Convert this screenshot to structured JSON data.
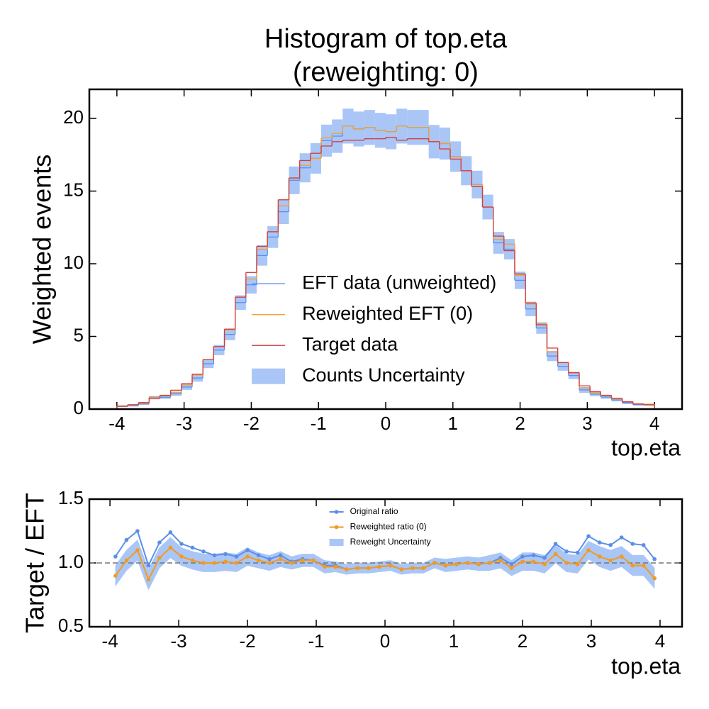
{
  "chart_data": [
    {
      "type": "histogram",
      "title": [
        "Histogram of top.eta",
        "(reweighting: 0)"
      ],
      "xlabel": "top.eta",
      "ylabel": "Weighted events",
      "bins": [
        -4,
        -3.84,
        -3.68,
        -3.52,
        -3.36,
        -3.2,
        -3.04,
        -2.88,
        -2.72,
        -2.56,
        -2.4,
        -2.24,
        -2.08,
        -1.92,
        -1.76,
        -1.6,
        -1.44,
        -1.28,
        -1.12,
        -0.96,
        -0.8,
        -0.64,
        -0.48,
        -0.32,
        -0.16,
        0,
        0.16,
        0.32,
        0.48,
        0.64,
        0.8,
        0.96,
        1.12,
        1.28,
        1.44,
        1.6,
        1.76,
        1.92,
        2.08,
        2.24,
        2.4,
        2.56,
        2.72,
        2.88,
        3.04,
        3.2,
        3.36,
        3.52,
        3.68,
        3.84,
        4
      ],
      "series": [
        {
          "name": "EFT data (unweighted)",
          "color": "#5b8ff0",
          "values": [
            0.19,
            0.25,
            0.36,
            0.77,
            0.82,
            1.05,
            1.52,
            2.14,
            3.12,
            4.06,
            5.14,
            7.33,
            8.55,
            10.57,
            11.84,
            13.58,
            15.74,
            16.6,
            17.25,
            18.47,
            18.78,
            19.47,
            19.27,
            19.38,
            19.18,
            19.08,
            19.47,
            19.38,
            19.38,
            18.4,
            18.27,
            17.37,
            16.4,
            15.45,
            13.9,
            11.44,
            11.0,
            8.86,
            6.89,
            5.58,
            3.65,
            2.94,
            2.31,
            1.32,
            1.03,
            0.83,
            0.63,
            0.43,
            0.31,
            0.29
          ]
        },
        {
          "name": "Reweighted EFT (0)",
          "color": "#f5a02a",
          "values": [
            0.22,
            0.29,
            0.41,
            0.86,
            0.91,
            1.16,
            1.67,
            2.35,
            3.4,
            4.3,
            5.45,
            7.7,
            8.95,
            10.98,
            12.2,
            13.98,
            15.9,
            16.76,
            17.25,
            18.66,
            18.97,
            19.47,
            19.27,
            19.38,
            19.18,
            19.08,
            19.47,
            19.38,
            19.38,
            18.4,
            18.27,
            17.37,
            16.4,
            15.45,
            13.9,
            11.67,
            11.35,
            9.21,
            7.23,
            5.86,
            3.93,
            3.2,
            2.53,
            1.45,
            1.14,
            0.93,
            0.71,
            0.51,
            0.36,
            0.34
          ]
        },
        {
          "name": "Target data",
          "color": "#d43a3a",
          "values": [
            0.2,
            0.3,
            0.45,
            0.75,
            0.95,
            1.3,
            1.75,
            2.4,
            3.4,
            4.3,
            5.5,
            7.7,
            9.4,
            11.2,
            12.2,
            14.4,
            15.9,
            17.1,
            17.6,
            18.1,
            18.4,
            18.5,
            18.5,
            18.6,
            18.6,
            18.7,
            18.5,
            18.6,
            18.6,
            18.4,
            17.9,
            17.2,
            16.4,
            15.3,
            13.9,
            11.9,
            10.9,
            9.3,
            7.3,
            5.8,
            4.2,
            3.2,
            2.5,
            1.6,
            1.2,
            0.95,
            0.75,
            0.5,
            0.35,
            0.3
          ]
        },
        {
          "name": "Counts Uncertainty",
          "color": "#a9c6f7",
          "errors": [
            0.05,
            0.07,
            0.08,
            0.1,
            0.12,
            0.14,
            0.2,
            0.25,
            0.3,
            0.35,
            0.4,
            0.5,
            0.6,
            0.7,
            0.75,
            0.85,
            0.95,
            1.0,
            1.05,
            1.1,
            1.15,
            1.2,
            1.2,
            1.2,
            1.2,
            1.2,
            1.2,
            1.2,
            1.2,
            1.15,
            1.1,
            1.05,
            1.0,
            0.95,
            0.85,
            0.75,
            0.7,
            0.6,
            0.5,
            0.4,
            0.35,
            0.3,
            0.25,
            0.2,
            0.14,
            0.12,
            0.1,
            0.08,
            0.07,
            0.05
          ]
        }
      ],
      "xlim": [
        -4.41,
        4.41
      ],
      "xticks": [
        -4,
        -3,
        -2,
        -1,
        0,
        1,
        2,
        3,
        4
      ],
      "ylim": [
        0,
        22
      ],
      "yticks": [
        0,
        5,
        10,
        15,
        20
      ],
      "legend": "center"
    },
    {
      "type": "line",
      "xlabel": "top.eta",
      "ylabel": "Target / EFT",
      "x": [
        -3.92,
        -3.76,
        -3.6,
        -3.44,
        -3.28,
        -3.12,
        -2.96,
        -2.8,
        -2.64,
        -2.48,
        -2.32,
        -2.16,
        -2,
        -1.84,
        -1.68,
        -1.52,
        -1.36,
        -1.2,
        -1.04,
        -0.88,
        -0.72,
        -0.56,
        -0.4,
        -0.24,
        -0.08,
        0.08,
        0.24,
        0.4,
        0.56,
        0.72,
        0.88,
        1.04,
        1.2,
        1.36,
        1.52,
        1.68,
        1.84,
        2,
        2.16,
        2.32,
        2.48,
        2.64,
        2.8,
        2.96,
        3.12,
        3.28,
        3.44,
        3.6,
        3.76,
        3.92
      ],
      "series": [
        {
          "name": "Original ratio",
          "color": "#5b8fe6",
          "values": [
            1.05,
            1.18,
            1.25,
            0.98,
            1.16,
            1.24,
            1.15,
            1.12,
            1.09,
            1.06,
            1.07,
            1.05,
            1.1,
            1.06,
            1.03,
            1.06,
            1.01,
            1.03,
            1.02,
            0.98,
            0.98,
            0.95,
            0.96,
            0.96,
            0.97,
            0.98,
            0.95,
            0.96,
            0.96,
            1.0,
            0.98,
            0.99,
            1.0,
            0.99,
            1.0,
            1.04,
            0.99,
            1.05,
            1.06,
            1.04,
            1.15,
            1.09,
            1.08,
            1.21,
            1.16,
            1.14,
            1.2,
            1.15,
            1.14,
            1.03
          ]
        },
        {
          "name": "Reweighted ratio (0)",
          "color": "#f39a1f",
          "values": [
            0.9,
            1.02,
            1.1,
            0.87,
            1.04,
            1.12,
            1.05,
            1.02,
            1.0,
            1.0,
            1.01,
            1.0,
            1.05,
            1.02,
            1.0,
            1.03,
            1.0,
            1.02,
            1.02,
            0.97,
            0.97,
            0.95,
            0.96,
            0.96,
            0.97,
            0.98,
            0.95,
            0.96,
            0.96,
            1.0,
            0.98,
            0.99,
            1.0,
            0.99,
            1.0,
            1.02,
            0.96,
            1.01,
            1.01,
            0.99,
            1.07,
            1.0,
            0.99,
            1.1,
            1.05,
            1.02,
            1.05,
            0.98,
            0.98,
            0.88
          ]
        },
        {
          "name": "Reweight Uncertainty",
          "color": "#a9c6f7",
          "errors": [
            0.08,
            0.08,
            0.08,
            0.08,
            0.08,
            0.08,
            0.07,
            0.07,
            0.07,
            0.07,
            0.07,
            0.07,
            0.07,
            0.06,
            0.06,
            0.06,
            0.05,
            0.05,
            0.05,
            0.05,
            0.04,
            0.04,
            0.04,
            0.04,
            0.04,
            0.04,
            0.04,
            0.04,
            0.04,
            0.04,
            0.05,
            0.05,
            0.05,
            0.05,
            0.06,
            0.06,
            0.06,
            0.07,
            0.07,
            0.07,
            0.07,
            0.07,
            0.07,
            0.07,
            0.08,
            0.08,
            0.08,
            0.08,
            0.08,
            0.08
          ]
        }
      ],
      "xlim": [
        -4.3,
        4.32
      ],
      "xticks": [
        -4,
        -3,
        -2,
        -1,
        0,
        1,
        2,
        3,
        4
      ],
      "ylim": [
        0.5,
        1.5
      ],
      "yticks": [
        0.5,
        {
          "value": 1,
          "label": "1.0"
        },
        1.5
      ],
      "reference_line": 1,
      "legend": "upper center"
    }
  ]
}
